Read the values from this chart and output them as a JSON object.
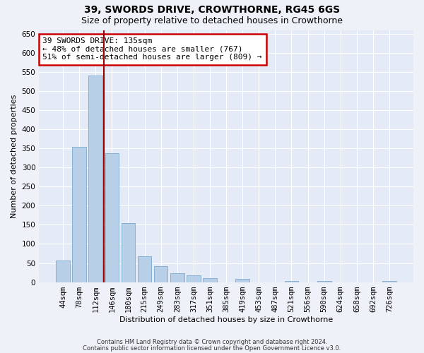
{
  "title1": "39, SWORDS DRIVE, CROWTHORNE, RG45 6GS",
  "title2": "Size of property relative to detached houses in Crowthorne",
  "xlabel": "Distribution of detached houses by size in Crowthorne",
  "ylabel": "Number of detached properties",
  "categories": [
    "44sqm",
    "78sqm",
    "112sqm",
    "146sqm",
    "180sqm",
    "215sqm",
    "249sqm",
    "283sqm",
    "317sqm",
    "351sqm",
    "385sqm",
    "419sqm",
    "453sqm",
    "487sqm",
    "521sqm",
    "556sqm",
    "590sqm",
    "624sqm",
    "658sqm",
    "692sqm",
    "726sqm"
  ],
  "values": [
    57,
    355,
    540,
    337,
    155,
    68,
    42,
    24,
    17,
    10,
    0,
    8,
    0,
    0,
    3,
    0,
    3,
    0,
    0,
    0,
    3
  ],
  "bar_color": "#b8cfe8",
  "bar_edge_color": "#7aaacf",
  "vline_color": "#990000",
  "annotation_text": "39 SWORDS DRIVE: 135sqm\n← 48% of detached houses are smaller (767)\n51% of semi-detached houses are larger (809) →",
  "annotation_box_color": "#ffffff",
  "annotation_box_edge": "#cc0000",
  "ylim": [
    0,
    660
  ],
  "yticks": [
    0,
    50,
    100,
    150,
    200,
    250,
    300,
    350,
    400,
    450,
    500,
    550,
    600,
    650
  ],
  "footer1": "Contains HM Land Registry data © Crown copyright and database right 2024.",
  "footer2": "Contains public sector information licensed under the Open Government Licence v3.0.",
  "bg_color": "#eef2f8",
  "plot_bg_color": "#e4eaf6",
  "title1_fontsize": 10,
  "title2_fontsize": 9,
  "xlabel_fontsize": 8,
  "ylabel_fontsize": 8,
  "tick_fontsize": 7.5,
  "footer_fontsize": 6,
  "annot_fontsize": 8
}
